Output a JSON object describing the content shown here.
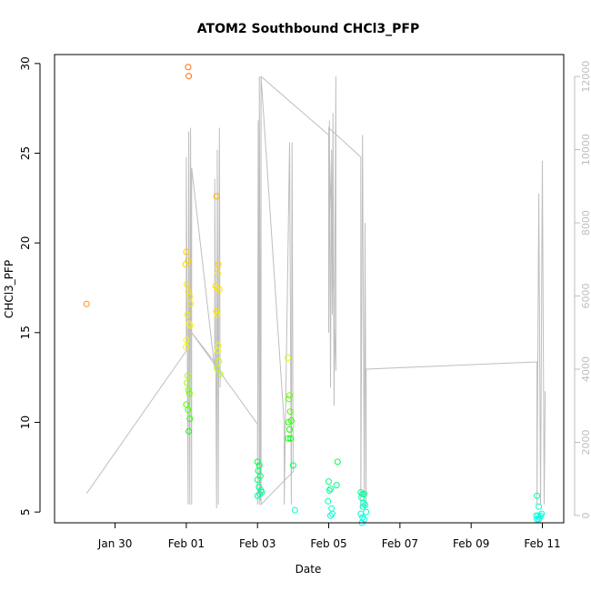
{
  "chart_data": {
    "type": "scatter",
    "title": "ATOM2 Southbound CHCl3_PFP",
    "xlabel": "Date",
    "ylabel": "CHCl3_PFP",
    "x_ticks": [
      "Jan 30",
      "Feb 01",
      "Feb 03",
      "Feb 05",
      "Feb 07",
      "Feb 09",
      "Feb 11"
    ],
    "x_tick_days": [
      30,
      32,
      34,
      36,
      38,
      40,
      42
    ],
    "xlim": [
      28.3,
      42.6
    ],
    "ylim": [
      4.4,
      30.5
    ],
    "y_ticks": [
      5,
      10,
      15,
      20,
      25,
      30
    ],
    "y2_ticks": [
      0,
      2000,
      4000,
      6000,
      8000,
      10000,
      12000
    ],
    "y2lim": [
      -200,
      12600
    ],
    "colors": {
      "altitude_line": "#bebebe",
      "right_axis": "#bdbdbd",
      "axis": "#000000"
    },
    "series": [
      {
        "marker": "open-circle",
        "colored_by_value": true,
        "points": [
          [
            29.2,
            16.6
          ],
          [
            32.05,
            29.8
          ],
          [
            32.07,
            29.3
          ],
          [
            32.0,
            19.5
          ],
          [
            32.05,
            19.0
          ],
          [
            31.98,
            18.8
          ],
          [
            32.02,
            17.7
          ],
          [
            32.06,
            17.3
          ],
          [
            32.1,
            17.0
          ],
          [
            32.12,
            16.6
          ],
          [
            32.03,
            16.0
          ],
          [
            32.08,
            15.5
          ],
          [
            32.11,
            15.4
          ],
          [
            32.0,
            14.6
          ],
          [
            31.99,
            14.2
          ],
          [
            32.04,
            12.6
          ],
          [
            32.02,
            12.2
          ],
          [
            32.06,
            11.8
          ],
          [
            32.09,
            11.6
          ],
          [
            32.0,
            11.0
          ],
          [
            32.05,
            10.7
          ],
          [
            32.1,
            10.2
          ],
          [
            32.07,
            9.5
          ],
          [
            32.85,
            22.6
          ],
          [
            32.9,
            18.8
          ],
          [
            32.88,
            18.3
          ],
          [
            32.82,
            17.6
          ],
          [
            32.86,
            17.5
          ],
          [
            32.93,
            17.4
          ],
          [
            32.84,
            16.2
          ],
          [
            32.87,
            16.0
          ],
          [
            32.9,
            14.3
          ],
          [
            32.88,
            14.0
          ],
          [
            32.92,
            13.4
          ],
          [
            32.86,
            13.0
          ],
          [
            32.95,
            12.7
          ],
          [
            34.0,
            7.8
          ],
          [
            34.05,
            7.6
          ],
          [
            34.02,
            7.3
          ],
          [
            34.08,
            7.0
          ],
          [
            34.0,
            6.8
          ],
          [
            34.04,
            6.4
          ],
          [
            34.1,
            6.2
          ],
          [
            34.06,
            6.0
          ],
          [
            34.0,
            5.9
          ],
          [
            34.12,
            6.1
          ],
          [
            34.85,
            13.6
          ],
          [
            34.9,
            11.5
          ],
          [
            34.88,
            11.3
          ],
          [
            34.92,
            10.6
          ],
          [
            34.95,
            10.1
          ],
          [
            34.87,
            10.0
          ],
          [
            34.9,
            9.6
          ],
          [
            34.93,
            9.1
          ],
          [
            34.86,
            9.1
          ],
          [
            35.0,
            7.6
          ],
          [
            35.05,
            5.1
          ],
          [
            36.0,
            6.7
          ],
          [
            36.05,
            6.3
          ],
          [
            36.02,
            6.2
          ],
          [
            35.98,
            5.6
          ],
          [
            36.08,
            5.2
          ],
          [
            36.05,
            4.8
          ],
          [
            36.1,
            4.9
          ],
          [
            36.25,
            7.8
          ],
          [
            36.22,
            6.5
          ],
          [
            36.9,
            6.1
          ],
          [
            36.95,
            6.0
          ],
          [
            37.0,
            6.0
          ],
          [
            36.92,
            5.8
          ],
          [
            36.98,
            5.5
          ],
          [
            37.02,
            5.4
          ],
          [
            36.96,
            5.3
          ],
          [
            37.05,
            5.0
          ],
          [
            36.9,
            4.9
          ],
          [
            36.95,
            4.7
          ],
          [
            37.0,
            4.6
          ],
          [
            36.93,
            4.4
          ],
          [
            41.85,
            5.9
          ],
          [
            41.9,
            5.3
          ],
          [
            41.88,
            4.8
          ],
          [
            41.83,
            4.8
          ],
          [
            41.92,
            4.7
          ],
          [
            41.85,
            4.6
          ],
          [
            41.95,
            4.8
          ],
          [
            41.98,
            4.9
          ],
          [
            41.9,
            4.6
          ]
        ]
      },
      {
        "name_axis": "right",
        "style": "line",
        "points": [
          [
            29.2,
            600
          ],
          [
            32.0,
            4500
          ],
          [
            32.0,
            9800
          ],
          [
            32.05,
            300
          ],
          [
            32.07,
            10500
          ],
          [
            32.1,
            300
          ],
          [
            32.12,
            10600
          ],
          [
            32.15,
            300
          ],
          [
            32.15,
            9500
          ],
          [
            32.8,
            4000
          ],
          [
            32.8,
            9200
          ],
          [
            32.85,
            200
          ],
          [
            32.87,
            10000
          ],
          [
            32.9,
            300
          ],
          [
            32.93,
            10600
          ],
          [
            32.95,
            3500
          ],
          [
            32.95,
            4000
          ],
          [
            32.15,
            5000
          ],
          [
            34.0,
            2500
          ],
          [
            34.0,
            300
          ],
          [
            34.02,
            10800
          ],
          [
            34.05,
            300
          ],
          [
            34.05,
            12000
          ],
          [
            34.08,
            400
          ],
          [
            34.1,
            12000
          ],
          [
            34.75,
            2500
          ],
          [
            34.75,
            300
          ],
          [
            34.9,
            10200
          ],
          [
            34.95,
            300
          ],
          [
            34.97,
            10200
          ],
          [
            35.0,
            1300
          ],
          [
            35.0,
            1200
          ],
          [
            34.1,
            300
          ],
          [
            34.1,
            12000
          ],
          [
            36.0,
            10400
          ],
          [
            36.0,
            5000
          ],
          [
            36.02,
            10800
          ],
          [
            36.05,
            3500
          ],
          [
            36.08,
            10000
          ],
          [
            36.1,
            5500
          ],
          [
            36.12,
            11000
          ],
          [
            36.15,
            3000
          ],
          [
            36.2,
            12000
          ],
          [
            36.2,
            3950
          ],
          [
            36.0,
            10600
          ],
          [
            36.9,
            9800
          ],
          [
            36.9,
            200
          ],
          [
            36.95,
            10400
          ],
          [
            37.0,
            200
          ],
          [
            37.02,
            8000
          ],
          [
            37.05,
            200
          ],
          [
            37.05,
            4000
          ],
          [
            41.85,
            4200
          ],
          [
            41.85,
            300
          ],
          [
            41.9,
            8800
          ],
          [
            41.95,
            300
          ],
          [
            42.0,
            9700
          ],
          [
            42.05,
            300
          ],
          [
            42.08,
            3400
          ]
        ]
      }
    ]
  }
}
